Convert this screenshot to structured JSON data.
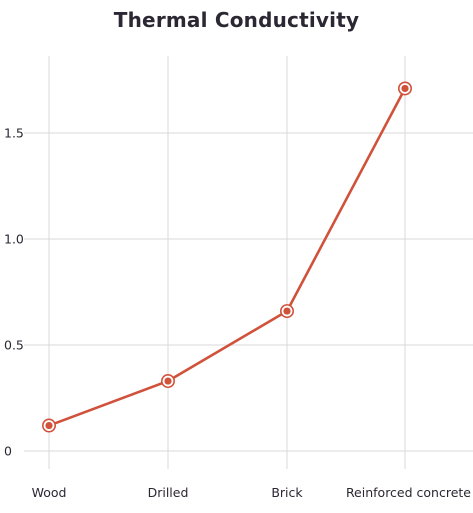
{
  "chart_data": {
    "type": "line",
    "title": "Thermal Conductivity",
    "xlabel": "",
    "ylabel": "",
    "categories": [
      "Wood",
      "Drilled",
      "Brick",
      "Reinforced concrete"
    ],
    "series": [
      {
        "values": [
          0.12,
          0.33,
          0.66,
          1.71
        ],
        "color": "#d0523a"
      }
    ],
    "ylim": [
      0,
      1.8
    ],
    "yticks": [
      0,
      0.5,
      1.0,
      1.5
    ],
    "ytick_labels": [
      "0",
      "0.5",
      "1.0",
      "1.5"
    ],
    "grid": true,
    "legend": "none"
  }
}
